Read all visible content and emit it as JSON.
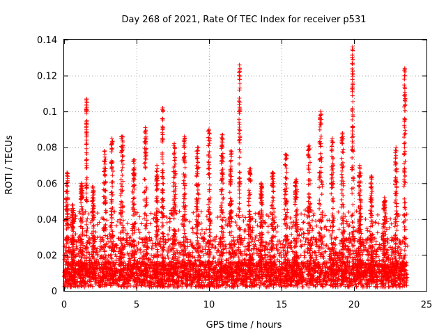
{
  "chart_data": {
    "type": "scatter",
    "title": "Day 268 of 2021, Rate Of TEC Index for receiver p531",
    "xlabel": "GPS time / hours",
    "ylabel": "ROTI / TECUs",
    "xlim": [
      0,
      25
    ],
    "ylim": [
      0,
      0.14
    ],
    "x_ticks": [
      0,
      5,
      10,
      15,
      20,
      25
    ],
    "x_tick_labels": [
      "0",
      "5",
      "10",
      "15",
      "20",
      "25"
    ],
    "y_ticks": [
      0,
      0.02,
      0.04,
      0.06,
      0.08,
      0.1,
      0.12,
      0.14
    ],
    "y_tick_labels": [
      "0",
      "0.02",
      "0.04",
      "0.06",
      "0.08",
      "0.1",
      "0.12",
      "0.14"
    ],
    "grid": true,
    "marker": "plus",
    "series_color": "#ff0000",
    "x_range_of_data": [
      0,
      23.7
    ],
    "background_points_per_hour": 190,
    "spikes": [
      {
        "x": 0.2,
        "peak": 0.066,
        "width": 0.25
      },
      {
        "x": 0.6,
        "peak": 0.048,
        "width": 0.2
      },
      {
        "x": 1.2,
        "peak": 0.06,
        "width": 0.25
      },
      {
        "x": 1.55,
        "peak": 0.107,
        "width": 0.1
      },
      {
        "x": 2.0,
        "peak": 0.058,
        "width": 0.25
      },
      {
        "x": 2.8,
        "peak": 0.078,
        "width": 0.3
      },
      {
        "x": 3.3,
        "peak": 0.085,
        "width": 0.25
      },
      {
        "x": 4.0,
        "peak": 0.086,
        "width": 0.3
      },
      {
        "x": 4.8,
        "peak": 0.073,
        "width": 0.25
      },
      {
        "x": 5.6,
        "peak": 0.091,
        "width": 0.3
      },
      {
        "x": 6.4,
        "peak": 0.07,
        "width": 0.2
      },
      {
        "x": 6.8,
        "peak": 0.102,
        "width": 0.15
      },
      {
        "x": 7.6,
        "peak": 0.082,
        "width": 0.3
      },
      {
        "x": 8.3,
        "peak": 0.086,
        "width": 0.25
      },
      {
        "x": 9.2,
        "peak": 0.08,
        "width": 0.3
      },
      {
        "x": 10.0,
        "peak": 0.09,
        "width": 0.25
      },
      {
        "x": 10.9,
        "peak": 0.087,
        "width": 0.25
      },
      {
        "x": 11.5,
        "peak": 0.078,
        "width": 0.25
      },
      {
        "x": 12.1,
        "peak": 0.126,
        "width": 0.15
      },
      {
        "x": 12.8,
        "peak": 0.068,
        "width": 0.3
      },
      {
        "x": 13.6,
        "peak": 0.06,
        "width": 0.3
      },
      {
        "x": 14.4,
        "peak": 0.066,
        "width": 0.3
      },
      {
        "x": 15.3,
        "peak": 0.076,
        "width": 0.3
      },
      {
        "x": 16.0,
        "peak": 0.062,
        "width": 0.3
      },
      {
        "x": 16.9,
        "peak": 0.081,
        "width": 0.3
      },
      {
        "x": 17.7,
        "peak": 0.1,
        "width": 0.35
      },
      {
        "x": 18.5,
        "peak": 0.085,
        "width": 0.25
      },
      {
        "x": 19.2,
        "peak": 0.088,
        "width": 0.25
      },
      {
        "x": 19.9,
        "peak": 0.136,
        "width": 0.15
      },
      {
        "x": 20.4,
        "peak": 0.07,
        "width": 0.3
      },
      {
        "x": 21.2,
        "peak": 0.064,
        "width": 0.3
      },
      {
        "x": 22.1,
        "peak": 0.052,
        "width": 0.3
      },
      {
        "x": 22.9,
        "peak": 0.08,
        "width": 0.25
      },
      {
        "x": 23.5,
        "peak": 0.124,
        "width": 0.15
      }
    ]
  }
}
